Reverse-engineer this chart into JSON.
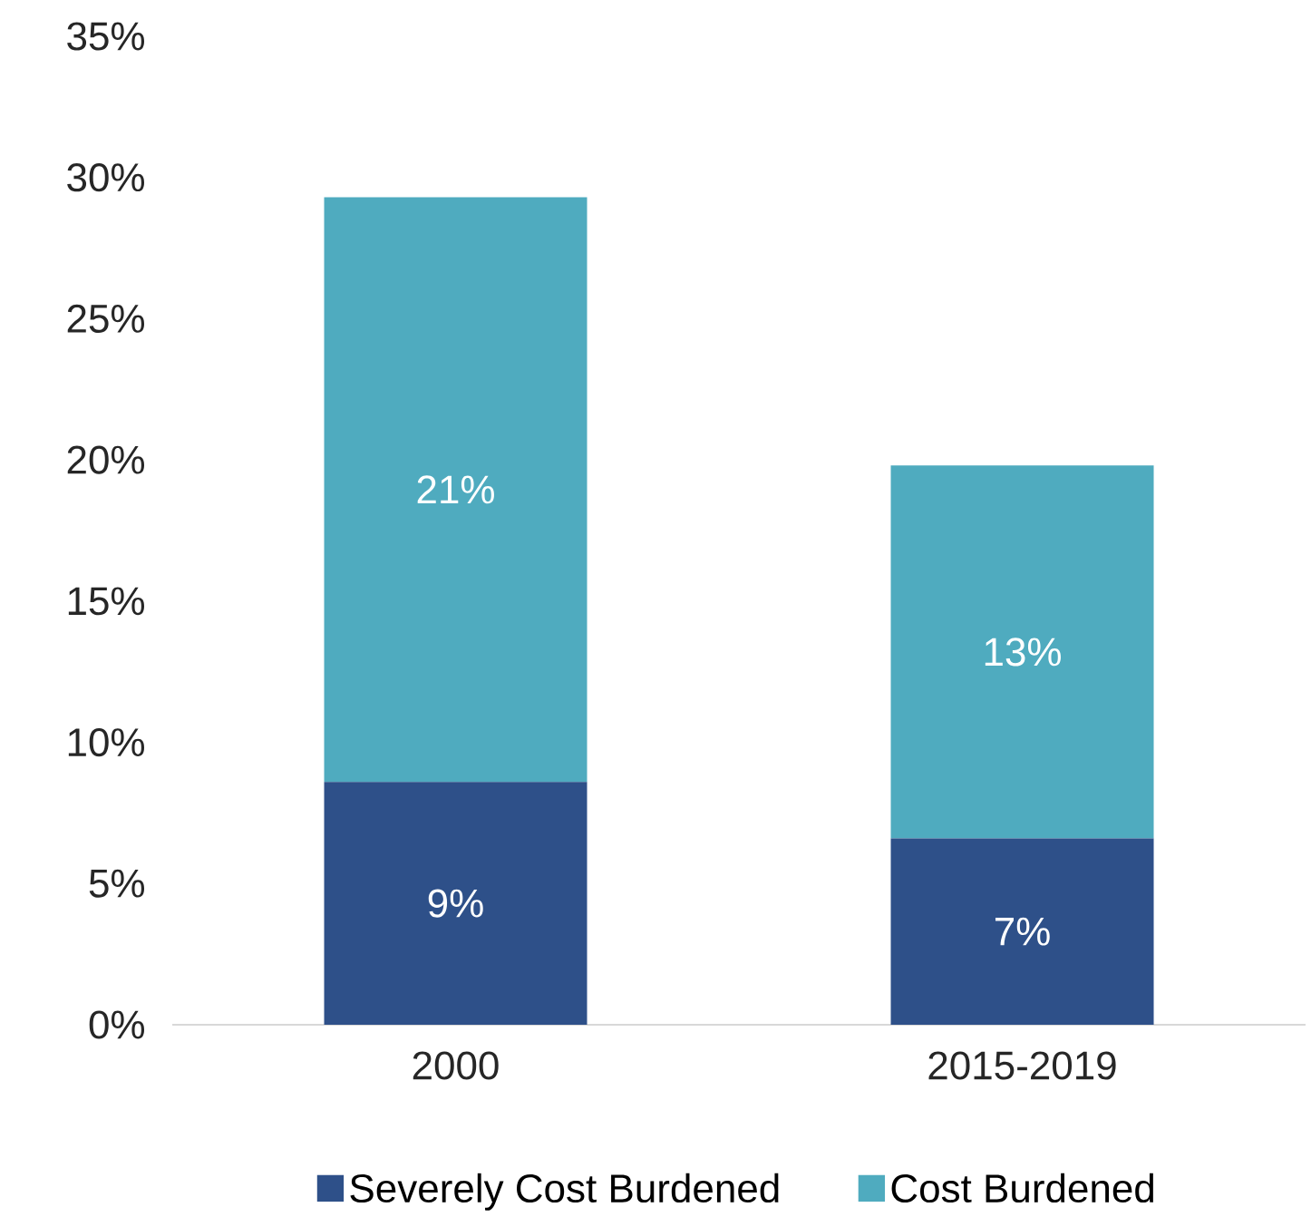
{
  "chart_data": {
    "type": "bar",
    "stacked": true,
    "categories": [
      "2000",
      "2015-2019"
    ],
    "series": [
      {
        "name": "Severely Cost Burdened",
        "color": "#2e5089",
        "values": [
          8.6,
          6.6
        ],
        "value_labels": [
          "9%",
          "7%"
        ]
      },
      {
        "name": "Cost Burdened",
        "color": "#4fabbf",
        "values": [
          20.7,
          13.2
        ],
        "value_labels": [
          "21%",
          "13%"
        ]
      }
    ],
    "ylim": [
      0,
      35
    ],
    "yticks": [
      {
        "value": 0,
        "label": "0%"
      },
      {
        "value": 5,
        "label": "5%"
      },
      {
        "value": 10,
        "label": "10%"
      },
      {
        "value": 15,
        "label": "15%"
      },
      {
        "value": 20,
        "label": "20%"
      },
      {
        "value": 25,
        "label": "25%"
      },
      {
        "value": 30,
        "label": "30%"
      },
      {
        "value": 35,
        "label": "35%"
      }
    ],
    "grid": false,
    "legend": "bottom"
  }
}
